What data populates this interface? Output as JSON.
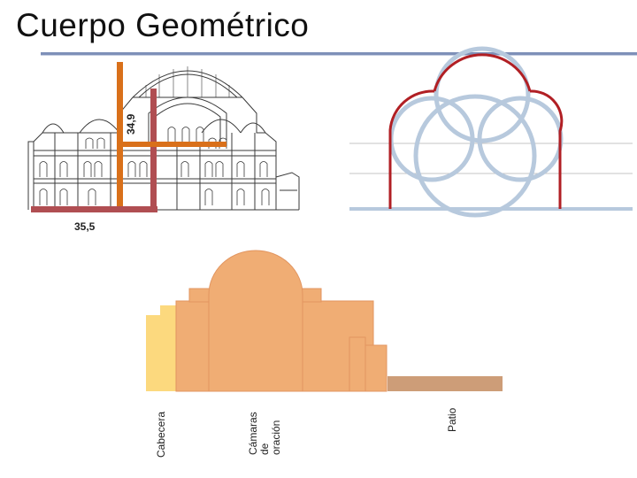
{
  "title": "Cuerpo Geométrico",
  "measures": {
    "width": "35,5",
    "height": "34,9"
  },
  "section_labels": {
    "cabecera": "Cabecera",
    "camaras": [
      "Cámaras",
      "de",
      "oración"
    ],
    "patio": "Patio"
  },
  "colors": {
    "title_rule": "#7e90b8",
    "dome_arc_red": "#b11f24",
    "circles_blue": "#b7c9dd",
    "measure_orange": "#d9701a",
    "measure_rose": "#b04e52",
    "block_orange": "#f0ad74",
    "block_yellow": "#fcd97e",
    "patio_brown": "#cd9d78"
  }
}
